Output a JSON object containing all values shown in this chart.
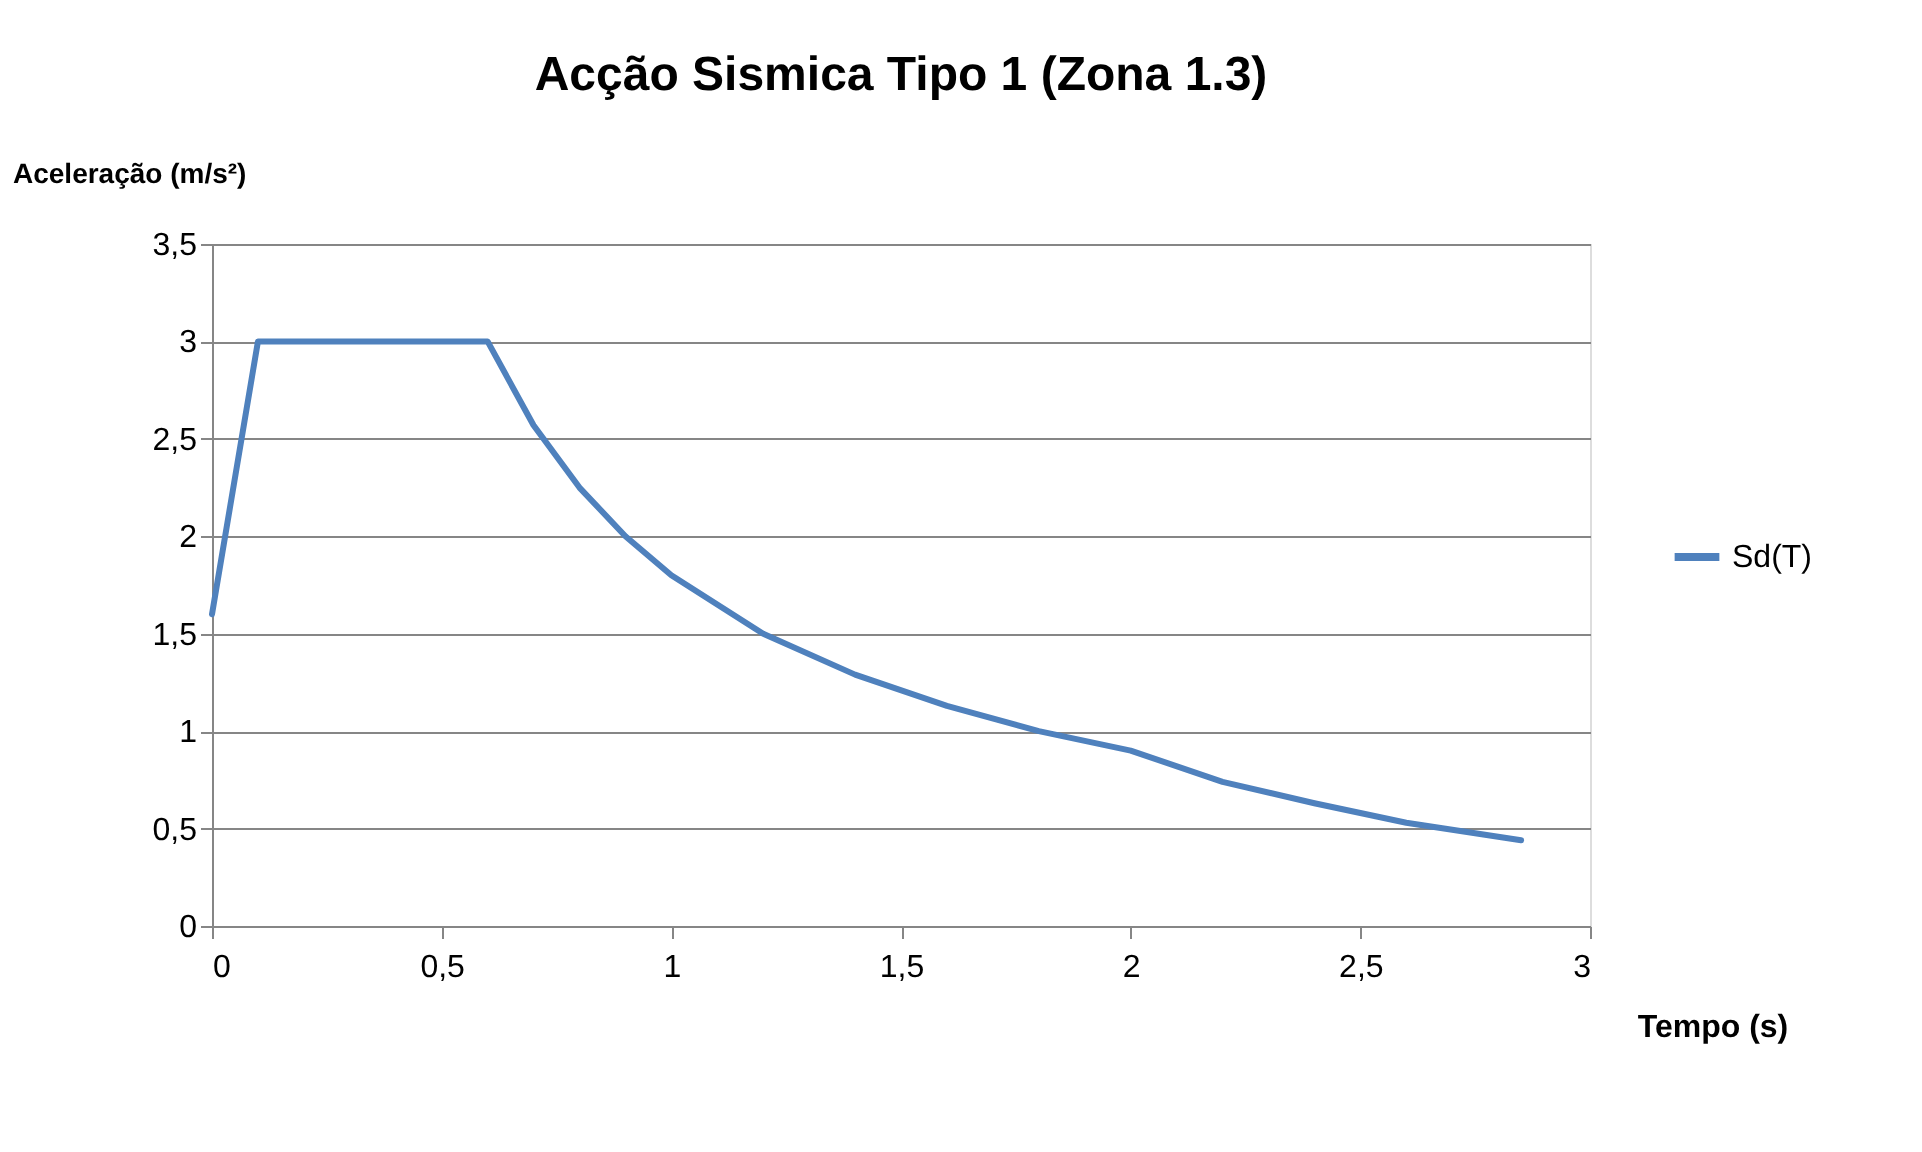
{
  "chart_data": {
    "type": "line",
    "title": "Acção Sismica Tipo 1 (Zona 1.3)",
    "xlabel": "Tempo (s)",
    "ylabel": "Aceleração (m/s²)",
    "series": [
      {
        "name": "Sd(T)",
        "color": "#4f81bd",
        "x": [
          0,
          0.1,
          0.6,
          0.7,
          0.8,
          0.9,
          1,
          1.2,
          1.4,
          1.6,
          1.8,
          2,
          2.2,
          2.4,
          2.6,
          2.85
        ],
        "values": [
          1.6,
          3,
          3,
          2.57,
          2.25,
          2,
          1.8,
          1.5,
          1.29,
          1.13,
          1,
          0.9,
          0.74,
          0.63,
          0.53,
          0.44
        ]
      }
    ],
    "xlim": [
      0,
      3
    ],
    "ylim": [
      0,
      3.5
    ],
    "xticks": [
      0,
      {
        "value": 0.5,
        "label": "0,5"
      },
      1,
      {
        "value": 1.5,
        "label": "1,5"
      },
      2,
      {
        "value": 2.5,
        "label": "2,5"
      },
      3
    ],
    "yticks": [
      0,
      {
        "value": 0.5,
        "label": "0,5"
      },
      1,
      {
        "value": 1.5,
        "label": "1,5"
      },
      2,
      {
        "value": 2.5,
        "label": "2,5"
      },
      3,
      {
        "value": 3.5,
        "label": "3,5"
      }
    ],
    "grid": "y",
    "legend": "right",
    "marker": "none",
    "line_style": "solid"
  }
}
